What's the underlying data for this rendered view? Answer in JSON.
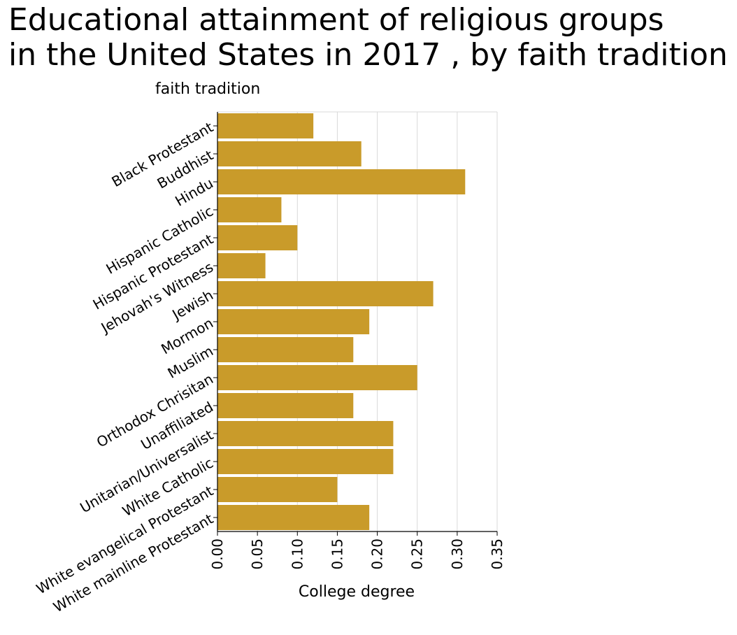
{
  "chart_data": {
    "type": "bar",
    "orientation": "horizontal",
    "title": [
      "Educational attainment of religious groups",
      "in the United States in 2017 , by faith tradition"
    ],
    "xlabel": "College degree",
    "ylabel": "faith tradition",
    "xlim": [
      0,
      0.35
    ],
    "xticks": [
      "0.00",
      "0.05",
      "0.10",
      "0.15",
      "0.20",
      "0.25",
      "0.30",
      "0.35"
    ],
    "grid": "vertical",
    "bar_color": "#c99b2a",
    "categories": [
      "Black Protestant",
      "Buddhist",
      "Hindu",
      "Hispanic Catholic",
      "Hispanic Protestant",
      "Jehovah's Witness",
      "Jewish",
      "Mormon",
      "Muslim",
      "Orthodox Chrisitan",
      "Unaffiliated",
      "Unitarian/Universalist",
      "White Catholic",
      "White evangelical Protestant",
      "White mainline Protestant"
    ],
    "values": [
      0.12,
      0.18,
      0.31,
      0.08,
      0.1,
      0.06,
      0.27,
      0.19,
      0.17,
      0.25,
      0.17,
      0.22,
      0.22,
      0.15,
      0.19
    ]
  }
}
